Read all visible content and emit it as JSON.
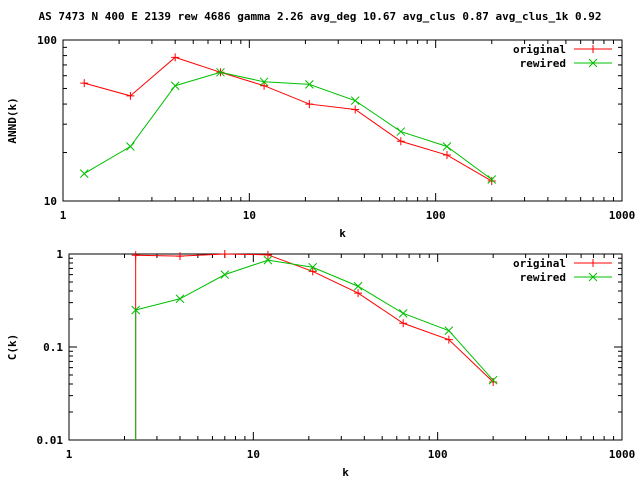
{
  "title": "AS 7473 N 400 E 2139 rew 4686 gamma 2.26 avg_deg 10.67 avg_clus 0.87 avg_clus_1k 0.92",
  "colors": {
    "original": "#ff0000",
    "rewired": "#00c000",
    "axes": "#000000"
  },
  "chart_data": [
    {
      "type": "line",
      "xlabel": "k",
      "ylabel": "ANND(k)",
      "xscale": "log",
      "yscale": "log",
      "xlim": [
        1,
        1000
      ],
      "ylim": [
        10,
        100
      ],
      "xticks": [
        {
          "v": 1,
          "label": "1"
        },
        {
          "v": 10,
          "label": "10"
        },
        {
          "v": 100,
          "label": "100"
        },
        {
          "v": 1000,
          "label": "1000"
        }
      ],
      "yticks": [
        {
          "v": 10,
          "label": "10"
        },
        {
          "v": 100,
          "label": "100"
        }
      ],
      "legend_position": "top-right",
      "series": [
        {
          "name": "original",
          "marker": "plus",
          "x": [
            1.3,
            2.3,
            4.0,
            7.0,
            12.0,
            21.0,
            37.0,
            65.0,
            115.0,
            200.0
          ],
          "y": [
            54,
            45,
            78,
            63,
            52,
            40,
            37,
            23.5,
            19.3,
            13.3
          ]
        },
        {
          "name": "rewired",
          "marker": "cross",
          "x": [
            1.3,
            2.3,
            4.0,
            7.0,
            12.0,
            21.0,
            37.0,
            65.0,
            115.0,
            200.0
          ],
          "y": [
            14.8,
            21.8,
            52,
            63,
            55,
            53,
            42,
            27,
            21.8,
            13.6
          ]
        }
      ]
    },
    {
      "type": "line",
      "xlabel": "k",
      "ylabel": "C(k)",
      "xscale": "log",
      "yscale": "log",
      "xlim": [
        1,
        1000
      ],
      "ylim": [
        0.01,
        1
      ],
      "xticks": [
        {
          "v": 1,
          "label": "1"
        },
        {
          "v": 10,
          "label": "10"
        },
        {
          "v": 100,
          "label": "100"
        },
        {
          "v": 1000,
          "label": "1000"
        }
      ],
      "yticks": [
        {
          "v": 0.01,
          "label": "0.01"
        },
        {
          "v": 0.1,
          "label": "0.1"
        },
        {
          "v": 1,
          "label": "1"
        }
      ],
      "legend_position": "top-right",
      "series": [
        {
          "name": "original",
          "marker": "plus",
          "x": [
            2.3,
            4.0,
            7.0,
            12.0,
            21.0,
            37.0,
            65.0,
            115.0,
            200.0
          ],
          "y": [
            0.97,
            0.95,
            1.0,
            0.98,
            0.65,
            0.38,
            0.18,
            0.12,
            0.042
          ],
          "drop_to_zero_at": 2.3
        },
        {
          "name": "rewired",
          "marker": "cross",
          "x": [
            2.3,
            4.0,
            7.0,
            12.0,
            21.0,
            37.0,
            65.0,
            115.0,
            200.0
          ],
          "y": [
            0.25,
            0.33,
            0.6,
            0.86,
            0.72,
            0.45,
            0.23,
            0.15,
            0.044
          ],
          "drop_to_zero_at": 2.3
        }
      ]
    }
  ]
}
